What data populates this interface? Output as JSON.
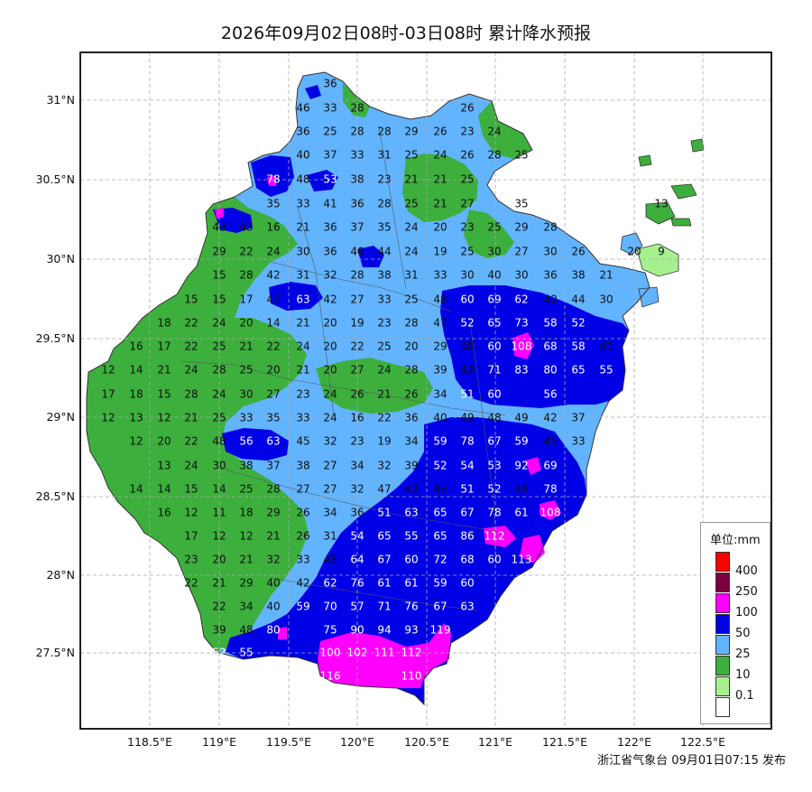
{
  "title": "2026年09月02日08时-03日08时 累计降水预报",
  "footer": "浙江省气象台 09月01日07:15 发布",
  "lon_labels": [
    "118.5°E",
    "119°E",
    "119.5°E",
    "120°E",
    "120.5°E",
    "121°E",
    "121.5°E",
    "122°E",
    "122.5°E"
  ],
  "lat_labels": [
    "31°N",
    "30.5°N",
    "30°N",
    "29.5°N",
    "29°N",
    "28.5°N",
    "28°N",
    "27.5°N"
  ],
  "legend": {
    "title": "单位:mm",
    "items": [
      {
        "label": "400",
        "color": "#ff0000"
      },
      {
        "label": "250",
        "color": "#7b0040"
      },
      {
        "label": "100",
        "color": "#ff00ff"
      },
      {
        "label": "50",
        "color": "#0000e6"
      },
      {
        "label": "25",
        "color": "#62b4ff"
      },
      {
        "label": "10",
        "color": "#3caf3c"
      },
      {
        "label": "0.1",
        "color": "#a7f08f"
      },
      {
        "label": "",
        "color": "#ffffff"
      }
    ]
  },
  "colors": {
    "grid": "#aaaaaa",
    "frame": "#000000",
    "boundary": "#333333"
  },
  "station_values": [
    [
      "36",
      366,
      93
    ],
    [
      "46",
      336,
      120
    ],
    [
      "33",
      366,
      120
    ],
    [
      "28",
      396,
      120
    ],
    [
      "26",
      518,
      120
    ],
    [
      "36",
      336,
      146
    ],
    [
      "25",
      366,
      146
    ],
    [
      "28",
      396,
      146
    ],
    [
      "28",
      426,
      146
    ],
    [
      "29",
      456,
      146
    ],
    [
      "26",
      488,
      146
    ],
    [
      "23",
      518,
      146
    ],
    [
      "24",
      548,
      146
    ],
    [
      "40",
      336,
      172
    ],
    [
      "37",
      366,
      172
    ],
    [
      "33",
      396,
      172
    ],
    [
      "31",
      426,
      172
    ],
    [
      "25",
      456,
      172
    ],
    [
      "24",
      488,
      172
    ],
    [
      "26",
      518,
      172
    ],
    [
      "28",
      548,
      172
    ],
    [
      "25",
      578,
      172
    ],
    [
      "78",
      303,
      199
    ],
    [
      "48",
      336,
      199
    ],
    [
      "53",
      366,
      199
    ],
    [
      "38",
      396,
      199
    ],
    [
      "23",
      426,
      199
    ],
    [
      "21",
      456,
      199
    ],
    [
      "21",
      488,
      199
    ],
    [
      "25",
      518,
      199
    ],
    [
      "35",
      303,
      226
    ],
    [
      "33",
      336,
      226
    ],
    [
      "41",
      366,
      226
    ],
    [
      "36",
      396,
      226
    ],
    [
      "28",
      426,
      226
    ],
    [
      "25",
      456,
      226
    ],
    [
      "21",
      488,
      226
    ],
    [
      "27",
      518,
      226
    ],
    [
      "35",
      578,
      226
    ],
    [
      "43",
      243,
      252
    ],
    [
      "43",
      273,
      252
    ],
    [
      "16",
      303,
      252
    ],
    [
      "21",
      336,
      252
    ],
    [
      "36",
      366,
      252
    ],
    [
      "37",
      396,
      252
    ],
    [
      "35",
      426,
      252
    ],
    [
      "24",
      456,
      252
    ],
    [
      "20",
      488,
      252
    ],
    [
      "23",
      518,
      252
    ],
    [
      "25",
      548,
      252
    ],
    [
      "29",
      578,
      252
    ],
    [
      "28",
      610,
      252
    ],
    [
      "29",
      243,
      279
    ],
    [
      "22",
      273,
      279
    ],
    [
      "24",
      303,
      279
    ],
    [
      "30",
      336,
      279
    ],
    [
      "36",
      366,
      279
    ],
    [
      "46",
      396,
      279
    ],
    [
      "44",
      426,
      279
    ],
    [
      "24",
      456,
      279
    ],
    [
      "19",
      488,
      279
    ],
    [
      "25",
      518,
      279
    ],
    [
      "30",
      548,
      279
    ],
    [
      "27",
      578,
      279
    ],
    [
      "30",
      610,
      279
    ],
    [
      "26",
      641,
      279
    ],
    [
      "15",
      243,
      305
    ],
    [
      "28",
      273,
      305
    ],
    [
      "42",
      303,
      305
    ],
    [
      "31",
      336,
      305
    ],
    [
      "32",
      366,
      305
    ],
    [
      "28",
      396,
      305
    ],
    [
      "38",
      426,
      305
    ],
    [
      "31",
      456,
      305
    ],
    [
      "33",
      488,
      305
    ],
    [
      "30",
      518,
      305
    ],
    [
      "40",
      548,
      305
    ],
    [
      "30",
      578,
      305
    ],
    [
      "36",
      610,
      305
    ],
    [
      "38",
      641,
      305
    ],
    [
      "21",
      672,
      305
    ],
    [
      "15",
      212,
      332
    ],
    [
      "15",
      243,
      332
    ],
    [
      "17",
      273,
      332
    ],
    [
      "47",
      303,
      332
    ],
    [
      "63",
      336,
      332
    ],
    [
      "42",
      366,
      332
    ],
    [
      "27",
      396,
      332
    ],
    [
      "33",
      426,
      332
    ],
    [
      "25",
      456,
      332
    ],
    [
      "48",
      488,
      332
    ],
    [
      "60",
      518,
      332
    ],
    [
      "69",
      548,
      332
    ],
    [
      "62",
      578,
      332
    ],
    [
      "40",
      610,
      332
    ],
    [
      "44",
      641,
      332
    ],
    [
      "30",
      672,
      332
    ],
    [
      "18",
      182,
      358
    ],
    [
      "22",
      212,
      358
    ],
    [
      "24",
      243,
      358
    ],
    [
      "20",
      273,
      358
    ],
    [
      "14",
      303,
      358
    ],
    [
      "21",
      336,
      358
    ],
    [
      "20",
      366,
      358
    ],
    [
      "19",
      396,
      358
    ],
    [
      "23",
      426,
      358
    ],
    [
      "28",
      456,
      358
    ],
    [
      "47",
      488,
      358
    ],
    [
      "52",
      518,
      358
    ],
    [
      "65",
      548,
      358
    ],
    [
      "73",
      578,
      358
    ],
    [
      "58",
      610,
      358
    ],
    [
      "52",
      641,
      358
    ],
    [
      "16",
      151,
      384
    ],
    [
      "17",
      182,
      384
    ],
    [
      "22",
      212,
      384
    ],
    [
      "25",
      243,
      384
    ],
    [
      "21",
      273,
      384
    ],
    [
      "22",
      303,
      384
    ],
    [
      "24",
      336,
      384
    ],
    [
      "20",
      366,
      384
    ],
    [
      "22",
      396,
      384
    ],
    [
      "25",
      426,
      384
    ],
    [
      "20",
      456,
      384
    ],
    [
      "29",
      488,
      384
    ],
    [
      "38",
      518,
      384
    ],
    [
      "60",
      548,
      384
    ],
    [
      "108",
      578,
      384
    ],
    [
      "68",
      610,
      384
    ],
    [
      "58",
      641,
      384
    ],
    [
      "43",
      672,
      384
    ],
    [
      "12",
      120,
      410
    ],
    [
      "14",
      151,
      410
    ],
    [
      "21",
      182,
      410
    ],
    [
      "24",
      212,
      410
    ],
    [
      "28",
      243,
      410
    ],
    [
      "25",
      273,
      410
    ],
    [
      "20",
      303,
      410
    ],
    [
      "21",
      336,
      410
    ],
    [
      "20",
      366,
      410
    ],
    [
      "27",
      396,
      410
    ],
    [
      "24",
      426,
      410
    ],
    [
      "28",
      456,
      410
    ],
    [
      "39",
      488,
      410
    ],
    [
      "42",
      518,
      410
    ],
    [
      "71",
      548,
      410
    ],
    [
      "83",
      578,
      410
    ],
    [
      "80",
      610,
      410
    ],
    [
      "65",
      641,
      410
    ],
    [
      "55",
      672,
      410
    ],
    [
      "17",
      120,
      437
    ],
    [
      "18",
      151,
      437
    ],
    [
      "15",
      182,
      437
    ],
    [
      "28",
      212,
      437
    ],
    [
      "24",
      243,
      437
    ],
    [
      "30",
      273,
      437
    ],
    [
      "27",
      303,
      437
    ],
    [
      "23",
      336,
      437
    ],
    [
      "24",
      366,
      437
    ],
    [
      "26",
      396,
      437
    ],
    [
      "21",
      426,
      437
    ],
    [
      "26",
      456,
      437
    ],
    [
      "34",
      488,
      437
    ],
    [
      "51",
      518,
      437
    ],
    [
      "60",
      548,
      437
    ],
    [
      "56",
      610,
      437
    ],
    [
      "12",
      120,
      463
    ],
    [
      "13",
      151,
      463
    ],
    [
      "12",
      182,
      463
    ],
    [
      "21",
      212,
      463
    ],
    [
      "25",
      243,
      463
    ],
    [
      "33",
      273,
      463
    ],
    [
      "35",
      303,
      463
    ],
    [
      "33",
      336,
      463
    ],
    [
      "24",
      366,
      463
    ],
    [
      "16",
      396,
      463
    ],
    [
      "22",
      426,
      463
    ],
    [
      "36",
      456,
      463
    ],
    [
      "40",
      488,
      463
    ],
    [
      "49",
      518,
      463
    ],
    [
      "48",
      548,
      463
    ],
    [
      "49",
      578,
      463
    ],
    [
      "42",
      610,
      463
    ],
    [
      "37",
      641,
      463
    ],
    [
      "12",
      151,
      489
    ],
    [
      "20",
      182,
      489
    ],
    [
      "22",
      212,
      489
    ],
    [
      "48",
      243,
      489
    ],
    [
      "56",
      273,
      489
    ],
    [
      "63",
      303,
      489
    ],
    [
      "45",
      336,
      489
    ],
    [
      "32",
      366,
      489
    ],
    [
      "23",
      396,
      489
    ],
    [
      "19",
      426,
      489
    ],
    [
      "34",
      456,
      489
    ],
    [
      "59",
      488,
      489
    ],
    [
      "78",
      518,
      489
    ],
    [
      "67",
      548,
      489
    ],
    [
      "59",
      578,
      489
    ],
    [
      "45",
      610,
      489
    ],
    [
      "33",
      641,
      489
    ],
    [
      "13",
      182,
      516
    ],
    [
      "24",
      212,
      516
    ],
    [
      "30",
      243,
      516
    ],
    [
      "38",
      273,
      516
    ],
    [
      "37",
      303,
      516
    ],
    [
      "38",
      336,
      516
    ],
    [
      "27",
      366,
      516
    ],
    [
      "34",
      396,
      516
    ],
    [
      "32",
      426,
      516
    ],
    [
      "39",
      456,
      516
    ],
    [
      "52",
      488,
      516
    ],
    [
      "54",
      518,
      516
    ],
    [
      "53",
      548,
      516
    ],
    [
      "92",
      578,
      516
    ],
    [
      "69",
      610,
      516
    ],
    [
      "14",
      151,
      542
    ],
    [
      "14",
      182,
      542
    ],
    [
      "15",
      212,
      542
    ],
    [
      "14",
      243,
      542
    ],
    [
      "25",
      273,
      542
    ],
    [
      "28",
      303,
      542
    ],
    [
      "27",
      336,
      542
    ],
    [
      "27",
      366,
      542
    ],
    [
      "32",
      396,
      542
    ],
    [
      "47",
      426,
      542
    ],
    [
      "43",
      456,
      542
    ],
    [
      "49",
      488,
      542
    ],
    [
      "51",
      518,
      542
    ],
    [
      "52",
      548,
      542
    ],
    [
      "48",
      578,
      542
    ],
    [
      "78",
      610,
      542
    ],
    [
      "16",
      182,
      568
    ],
    [
      "12",
      212,
      568
    ],
    [
      "11",
      243,
      568
    ],
    [
      "18",
      273,
      568
    ],
    [
      "29",
      303,
      568
    ],
    [
      "26",
      336,
      568
    ],
    [
      "34",
      366,
      568
    ],
    [
      "36",
      396,
      568
    ],
    [
      "51",
      426,
      568
    ],
    [
      "63",
      456,
      568
    ],
    [
      "65",
      488,
      568
    ],
    [
      "67",
      518,
      568
    ],
    [
      "78",
      548,
      568
    ],
    [
      "61",
      578,
      568
    ],
    [
      "108",
      610,
      568
    ],
    [
      "17",
      212,
      594
    ],
    [
      "12",
      243,
      594
    ],
    [
      "12",
      273,
      594
    ],
    [
      "21",
      303,
      594
    ],
    [
      "26",
      336,
      594
    ],
    [
      "31",
      366,
      594
    ],
    [
      "54",
      396,
      594
    ],
    [
      "65",
      426,
      594
    ],
    [
      "55",
      456,
      594
    ],
    [
      "65",
      488,
      594
    ],
    [
      "86",
      518,
      594
    ],
    [
      "112",
      548,
      594
    ],
    [
      "23",
      212,
      620
    ],
    [
      "20",
      243,
      620
    ],
    [
      "21",
      273,
      620
    ],
    [
      "32",
      303,
      620
    ],
    [
      "33",
      336,
      620
    ],
    [
      "45",
      366,
      620
    ],
    [
      "64",
      396,
      620
    ],
    [
      "67",
      426,
      620
    ],
    [
      "60",
      456,
      620
    ],
    [
      "72",
      488,
      620
    ],
    [
      "68",
      518,
      620
    ],
    [
      "60",
      548,
      620
    ],
    [
      "113",
      578,
      620
    ],
    [
      "22",
      212,
      646
    ],
    [
      "21",
      243,
      646
    ],
    [
      "29",
      273,
      646
    ],
    [
      "40",
      303,
      646
    ],
    [
      "42",
      336,
      646
    ],
    [
      "62",
      366,
      646
    ],
    [
      "76",
      396,
      646
    ],
    [
      "61",
      426,
      646
    ],
    [
      "61",
      456,
      646
    ],
    [
      "59",
      488,
      646
    ],
    [
      "60",
      518,
      646
    ],
    [
      "22",
      243,
      672
    ],
    [
      "34",
      273,
      672
    ],
    [
      "40",
      303,
      672
    ],
    [
      "59",
      336,
      672
    ],
    [
      "70",
      366,
      672
    ],
    [
      "57",
      396,
      672
    ],
    [
      "71",
      426,
      672
    ],
    [
      "76",
      456,
      672
    ],
    [
      "67",
      488,
      672
    ],
    [
      "63",
      518,
      672
    ],
    [
      "39",
      243,
      698
    ],
    [
      "48",
      273,
      698
    ],
    [
      "80",
      303,
      698
    ],
    [
      "75",
      366,
      698
    ],
    [
      "90",
      396,
      698
    ],
    [
      "94",
      426,
      698
    ],
    [
      "93",
      456,
      698
    ],
    [
      "119",
      488,
      698
    ],
    [
      "52",
      243,
      723
    ],
    [
      "55",
      273,
      723
    ],
    [
      "100",
      366,
      723
    ],
    [
      "102",
      396,
      723
    ],
    [
      "111",
      426,
      723
    ],
    [
      "112",
      456,
      723
    ],
    [
      "116",
      366,
      749
    ],
    [
      "110",
      456,
      749
    ],
    [
      "13",
      733,
      226
    ],
    [
      "20",
      703,
      279
    ],
    [
      "9",
      733,
      279
    ]
  ]
}
